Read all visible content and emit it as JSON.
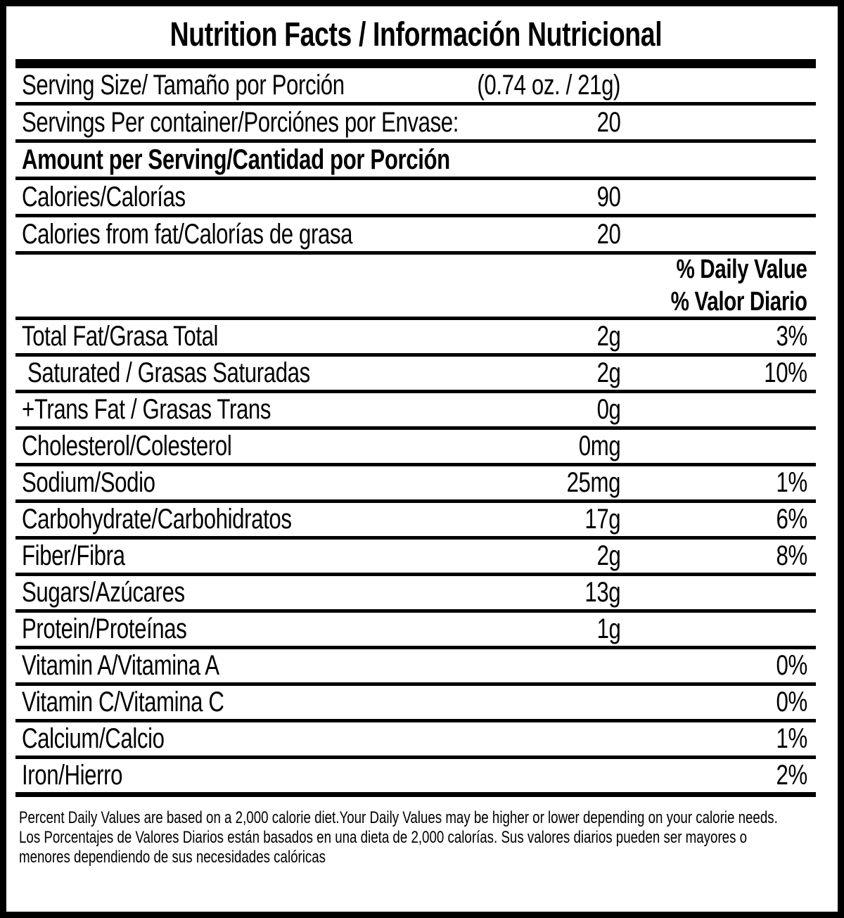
{
  "title": "Nutrition Facts / Información Nutricional",
  "daily_value_header": {
    "line1": "% Daily Value",
    "line2": "% Valor Diario"
  },
  "rows": [
    {
      "label": "Serving Size/ Tamaño por Porción",
      "amount": "(0.74 oz. / 21g)",
      "percent": ""
    },
    {
      "label": "Servings Per container/Porciónes por Envase:",
      "amount": "20",
      "percent": ""
    },
    {
      "label": "Amount per Serving/Cantidad por Porción",
      "amount": "",
      "percent": ""
    },
    {
      "label": "Calories/Calorías",
      "amount": "90",
      "percent": ""
    },
    {
      "label": "Calories from fat/Calorías de grasa",
      "amount": "20",
      "percent": ""
    },
    {
      "label": "Total Fat/Grasa Total",
      "amount": "2g",
      "percent": "3%"
    },
    {
      "label": "Saturated / Grasas Saturadas",
      "amount": "2g",
      "percent": "10%"
    },
    {
      "label": "+Trans Fat / Grasas Trans",
      "amount": "0g",
      "percent": ""
    },
    {
      "label": "Cholesterol/Colesterol",
      "amount": "0mg",
      "percent": ""
    },
    {
      "label": "Sodium/Sodio",
      "amount": "25mg",
      "percent": "1%"
    },
    {
      "label": "Carbohydrate/Carbohidratos",
      "amount": "17g",
      "percent": "6%"
    },
    {
      "label": "Fiber/Fibra",
      "amount": "2g",
      "percent": "8%"
    },
    {
      "label": "Sugars/Azúcares",
      "amount": "13g",
      "percent": ""
    },
    {
      "label": "Protein/Proteínas",
      "amount": "1g",
      "percent": ""
    },
    {
      "label": "Vitamin A/Vitamina A",
      "amount": "",
      "percent": "0%"
    },
    {
      "label": "Vitamin C/Vitamina C",
      "amount": "",
      "percent": "0%"
    },
    {
      "label": "Calcium/Calcio",
      "amount": "",
      "percent": "1%"
    },
    {
      "label": "Iron/Hierro",
      "amount": "",
      "percent": "2%"
    }
  ],
  "footer": {
    "en": "Percent Daily Values are based on a 2,000 calorie diet.Your Daily Values may be higher or lower depending on your calorie needs.",
    "es": "Los Porcentajes de Valores Diarios están basados en una dieta de 2,000 calorías. Sus valores diarios pueden ser mayores o menores dependiendo de sus necesidades calóricas"
  },
  "colors": {
    "text": "#000000",
    "background": "#ffffff",
    "border": "#000000"
  }
}
